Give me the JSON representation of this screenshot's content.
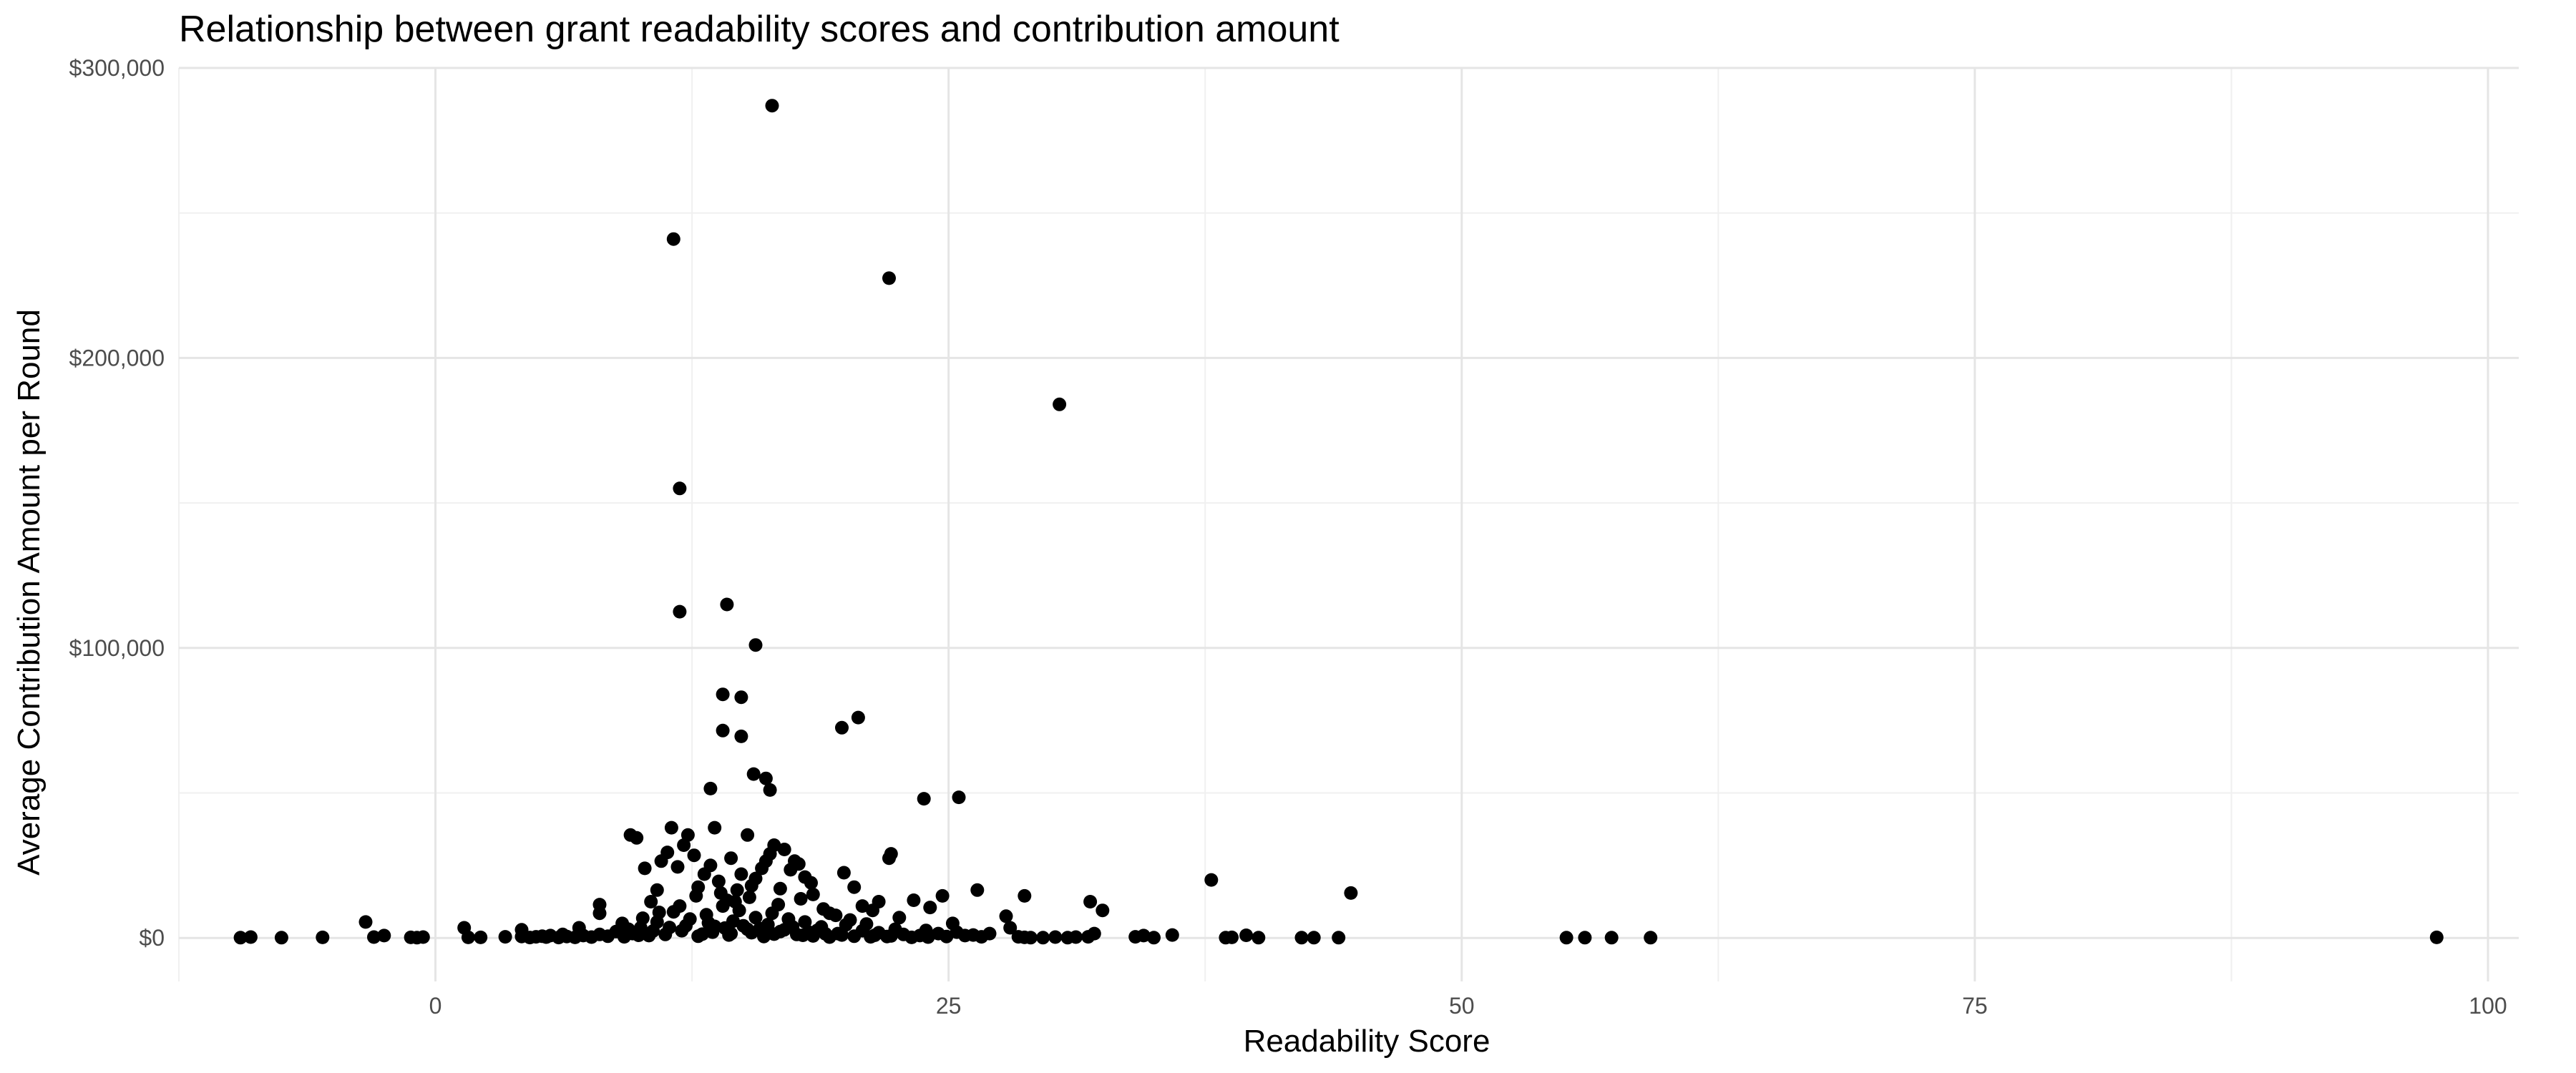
{
  "chart_data": {
    "type": "scatter",
    "title": "Relationship between grant readability scores and contribution amount",
    "xlabel": "Readability Score",
    "ylabel": "Average Contribution Amount per Round",
    "xlim": [
      -12.5,
      101.5
    ],
    "ylim": [
      -15000,
      300000
    ],
    "x_ticks": [
      0,
      25,
      50,
      75,
      100
    ],
    "x_tick_labels": [
      "0",
      "25",
      "50",
      "75",
      "100"
    ],
    "y_ticks": [
      0,
      100000,
      200000,
      300000
    ],
    "y_tick_labels": [
      "$0",
      "$100,000",
      "$200,000",
      "$300,000"
    ],
    "grid": true,
    "point_color": "#000000",
    "series": [
      {
        "points": [
          [
            16.4,
            287000
          ],
          [
            11.6,
            241000
          ],
          [
            22.1,
            227500
          ],
          [
            30.4,
            184000
          ],
          [
            11.9,
            155000
          ],
          [
            11.9,
            112500
          ],
          [
            14.2,
            115000
          ],
          [
            15.6,
            101000
          ],
          [
            20.6,
            76000
          ],
          [
            19.8,
            72500
          ],
          [
            14.0,
            84000
          ],
          [
            14.9,
            83000
          ],
          [
            14.0,
            71500
          ],
          [
            14.9,
            69500
          ],
          [
            15.5,
            56500
          ],
          [
            16.1,
            55000
          ],
          [
            16.3,
            51000
          ],
          [
            13.4,
            51500
          ],
          [
            25.5,
            48500
          ],
          [
            23.8,
            48000
          ],
          [
            44.6,
            15500
          ],
          [
            37.8,
            20000
          ],
          [
            32.5,
            9500
          ],
          [
            31.9,
            12500
          ],
          [
            28.7,
            14500
          ],
          [
            26.4,
            16500
          ],
          [
            25.2,
            5000
          ],
          [
            24.7,
            14500
          ],
          [
            24.1,
            10500
          ],
          [
            23.3,
            13000
          ],
          [
            22.2,
            29000
          ],
          [
            22.1,
            27500
          ],
          [
            21.6,
            12500
          ],
          [
            21.3,
            9500
          ],
          [
            20.8,
            11000
          ],
          [
            20.4,
            17500
          ],
          [
            19.9,
            22500
          ],
          [
            19.2,
            8500
          ],
          [
            18.4,
            15000
          ],
          [
            18.3,
            19000
          ],
          [
            18.0,
            21000
          ],
          [
            17.7,
            25500
          ],
          [
            17.5,
            26500
          ],
          [
            17.3,
            23500
          ],
          [
            17.0,
            30500
          ],
          [
            16.8,
            17000
          ],
          [
            16.5,
            32000
          ],
          [
            16.3,
            29000
          ],
          [
            16.1,
            26500
          ],
          [
            15.9,
            24000
          ],
          [
            15.6,
            20500
          ],
          [
            15.4,
            18000
          ],
          [
            15.2,
            35500
          ],
          [
            14.9,
            22000
          ],
          [
            14.7,
            16500
          ],
          [
            14.4,
            27500
          ],
          [
            14.2,
            13000
          ],
          [
            13.8,
            19500
          ],
          [
            13.6,
            38000
          ],
          [
            13.4,
            25000
          ],
          [
            13.1,
            22000
          ],
          [
            12.8,
            17500
          ],
          [
            12.6,
            28500
          ],
          [
            12.3,
            35500
          ],
          [
            12.1,
            32000
          ],
          [
            11.8,
            24500
          ],
          [
            11.5,
            38000
          ],
          [
            11.3,
            29500
          ],
          [
            11.0,
            26500
          ],
          [
            10.8,
            16500
          ],
          [
            10.5,
            12500
          ],
          [
            10.2,
            24000
          ],
          [
            9.8,
            34500
          ],
          [
            9.5,
            35500
          ],
          [
            9.1,
            5000
          ],
          [
            8.0,
            11500
          ],
          [
            8.0,
            8500
          ],
          [
            7.0,
            3500
          ],
          [
            6.2,
            1200
          ],
          [
            5.6,
            800
          ],
          [
            5.2,
            600
          ],
          [
            4.9,
            400
          ],
          [
            4.2,
            2800
          ],
          [
            4.2,
            500
          ],
          [
            3.4,
            400
          ],
          [
            2.2,
            200
          ],
          [
            1.6,
            200
          ],
          [
            1.4,
            3500
          ],
          [
            -0.6,
            300
          ],
          [
            -0.9,
            100
          ],
          [
            -1.2,
            200
          ],
          [
            -2.5,
            800
          ],
          [
            -3.0,
            300
          ],
          [
            -3.4,
            5500
          ],
          [
            -5.5,
            200
          ],
          [
            -7.5,
            100
          ],
          [
            -9.0,
            300
          ],
          [
            -9.5,
            100
          ],
          [
            97.5,
            200
          ],
          [
            59.2,
            100
          ],
          [
            57.3,
            100
          ],
          [
            56.0,
            100
          ],
          [
            55.1,
            100
          ],
          [
            44.0,
            100
          ],
          [
            42.8,
            100
          ],
          [
            42.2,
            100
          ],
          [
            40.1,
            100
          ],
          [
            39.5,
            900
          ],
          [
            38.8,
            200
          ],
          [
            38.5,
            100
          ],
          [
            35.9,
            1000
          ],
          [
            35.0,
            100
          ],
          [
            34.5,
            800
          ],
          [
            34.1,
            400
          ],
          [
            32.1,
            1500
          ],
          [
            31.8,
            400
          ],
          [
            31.2,
            300
          ],
          [
            30.8,
            100
          ],
          [
            30.2,
            300
          ],
          [
            29.6,
            100
          ],
          [
            29.0,
            100
          ],
          [
            28.7,
            200
          ],
          [
            28.4,
            400
          ],
          [
            28.0,
            3500
          ],
          [
            27.8,
            7500
          ],
          [
            27.0,
            1500
          ],
          [
            26.6,
            400
          ],
          [
            26.2,
            1000
          ],
          [
            25.8,
            800
          ],
          [
            25.4,
            2000
          ],
          [
            24.9,
            500
          ],
          [
            24.5,
            1500
          ],
          [
            24.0,
            300
          ],
          [
            23.6,
            800
          ],
          [
            23.2,
            200
          ],
          [
            22.8,
            1200
          ],
          [
            22.4,
            3000
          ],
          [
            22.0,
            500
          ],
          [
            21.6,
            1800
          ],
          [
            21.2,
            400
          ],
          [
            20.8,
            2500
          ],
          [
            20.4,
            600
          ],
          [
            20.0,
            4500
          ],
          [
            19.6,
            1500
          ],
          [
            19.2,
            300
          ],
          [
            18.8,
            3800
          ],
          [
            18.4,
            700
          ],
          [
            18.0,
            5500
          ],
          [
            17.6,
            1200
          ],
          [
            17.2,
            6500
          ],
          [
            16.8,
            2200
          ],
          [
            16.4,
            8500
          ],
          [
            16.0,
            500
          ],
          [
            15.6,
            7000
          ],
          [
            15.2,
            3000
          ],
          [
            14.8,
            9500
          ],
          [
            14.4,
            1500
          ],
          [
            14.0,
            11000
          ],
          [
            13.6,
            4000
          ],
          [
            13.2,
            8000
          ],
          [
            12.8,
            600
          ],
          [
            12.4,
            6500
          ],
          [
            12.0,
            2500
          ],
          [
            11.6,
            9000
          ],
          [
            11.2,
            1200
          ],
          [
            10.8,
            5500
          ],
          [
            10.4,
            800
          ],
          [
            10.0,
            3500
          ],
          [
            9.6,
            1500
          ],
          [
            9.2,
            400
          ],
          [
            8.8,
            2200
          ],
          [
            8.4,
            600
          ],
          [
            8.0,
            1200
          ],
          [
            7.6,
            300
          ],
          [
            7.2,
            800
          ],
          [
            6.8,
            200
          ],
          [
            6.4,
            500
          ],
          [
            6.0,
            150
          ],
          [
            5.4,
            300
          ],
          [
            4.6,
            150
          ],
          [
            13.9,
            15500
          ],
          [
            14.6,
            12500
          ],
          [
            15.3,
            14000
          ],
          [
            16.7,
            11500
          ],
          [
            17.8,
            13500
          ],
          [
            18.9,
            10000
          ],
          [
            19.5,
            7800
          ],
          [
            20.2,
            6200
          ],
          [
            21.0,
            4800
          ],
          [
            22.6,
            7000
          ],
          [
            23.9,
            2600
          ],
          [
            12.7,
            14500
          ],
          [
            11.9,
            11000
          ],
          [
            10.9,
            8800
          ],
          [
            10.1,
            6800
          ],
          [
            9.4,
            3000
          ],
          [
            13.3,
            5200
          ],
          [
            14.1,
            3400
          ],
          [
            14.5,
            5800
          ],
          [
            15.0,
            4200
          ],
          [
            15.8,
            3200
          ],
          [
            16.2,
            4600
          ],
          [
            17.0,
            2800
          ],
          [
            17.4,
            3800
          ],
          [
            18.2,
            2000
          ],
          [
            18.6,
            2600
          ],
          [
            19.0,
            1400
          ],
          [
            19.8,
            1000
          ],
          [
            21.4,
            900
          ],
          [
            22.2,
            700
          ],
          [
            12.2,
            4200
          ],
          [
            11.4,
            3600
          ],
          [
            10.6,
            2400
          ],
          [
            9.9,
            900
          ],
          [
            13.5,
            2000
          ],
          [
            14.3,
            1000
          ],
          [
            15.4,
            1800
          ],
          [
            16.5,
            1300
          ],
          [
            17.9,
            900
          ],
          [
            13.0,
            1300
          ]
        ]
      }
    ]
  }
}
